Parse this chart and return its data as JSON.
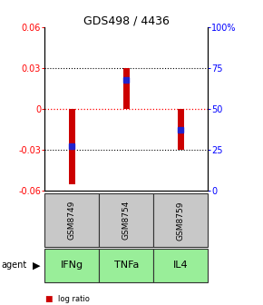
{
  "title": "GDS498 / 4436",
  "samples": [
    "GSM8749",
    "GSM8754",
    "GSM8759"
  ],
  "agents": [
    "IFNg",
    "TNFa",
    "IL4"
  ],
  "log_ratios": [
    -0.055,
    0.03,
    -0.03
  ],
  "percentile_ranks": [
    27,
    68,
    37
  ],
  "ylim_left": [
    -0.06,
    0.06
  ],
  "ylim_right": [
    0,
    100
  ],
  "yticks_left": [
    -0.06,
    -0.03,
    0,
    0.03,
    0.06
  ],
  "yticks_right": [
    0,
    25,
    50,
    75,
    100
  ],
  "ytick_labels_left": [
    "-0.06",
    "-0.03",
    "0",
    "0.03",
    "0.06"
  ],
  "ytick_labels_right": [
    "0",
    "25",
    "50",
    "75",
    "100%"
  ],
  "bar_color": "#cc0000",
  "blue_color": "#2222cc",
  "sample_bg": "#c8c8c8",
  "agent_bg": "#99ee99",
  "bar_width": 0.12,
  "blue_marker_size": 4,
  "title_fontsize": 9,
  "tick_fontsize": 7,
  "sample_fontsize": 6.5,
  "agent_fontsize": 8,
  "legend_fontsize": 6,
  "cell_border_color": "#333333"
}
